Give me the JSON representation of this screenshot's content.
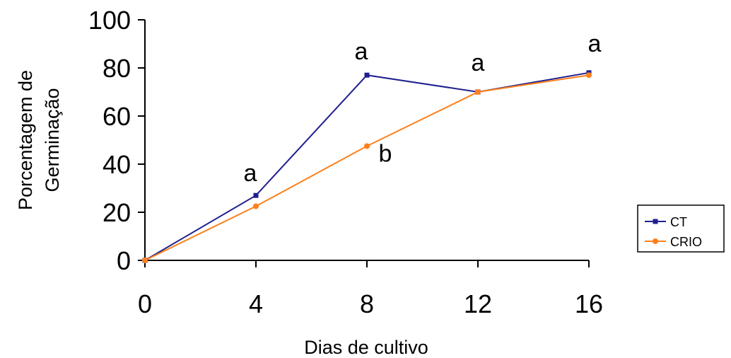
{
  "chart_data": {
    "type": "line",
    "x": [
      0,
      4,
      8,
      12,
      16
    ],
    "series": [
      {
        "name": "CT",
        "values": [
          0,
          27,
          77,
          70,
          78
        ],
        "color": "#1f1f8f",
        "marker": "square"
      },
      {
        "name": "CRIO",
        "values": [
          0,
          22.5,
          47.5,
          70,
          77
        ],
        "color": "#ff7f1a",
        "marker": "circle"
      }
    ],
    "xlabel": "Dias de cultivo",
    "ylabel_lines": [
      "Porcentagem de",
      "Germinação"
    ],
    "xlim": [
      0,
      16
    ],
    "ylim": [
      0,
      100
    ],
    "xticks": [
      "0",
      "4",
      "8",
      "12",
      "16"
    ],
    "yticks": [
      "0",
      "20",
      "40",
      "60",
      "80",
      "100"
    ],
    "annotations": [
      {
        "text": "a",
        "x": 4
      },
      {
        "text": "a",
        "x": 8
      },
      {
        "text": "b",
        "x": 8
      },
      {
        "text": "a",
        "x": 12
      },
      {
        "text": "a",
        "x": 16
      }
    ],
    "legend_position": "bottom-right",
    "grid": false
  }
}
